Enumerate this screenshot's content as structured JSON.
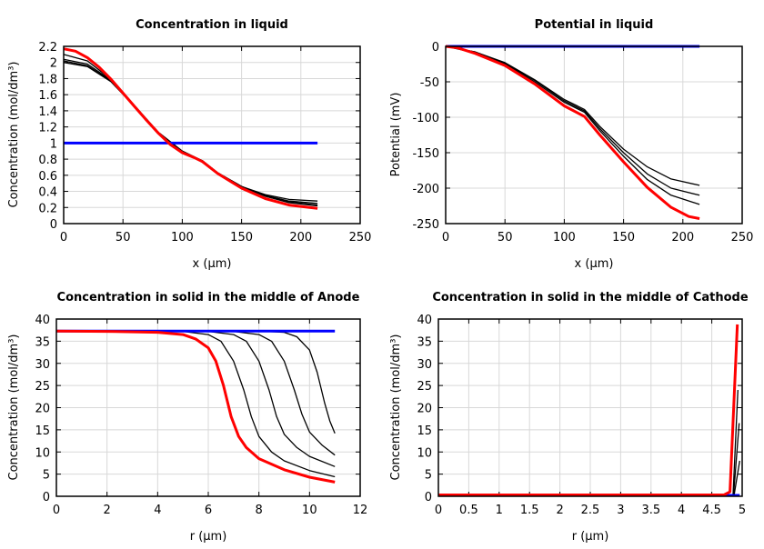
{
  "chart_data": [
    {
      "type": "line",
      "title": "Concentration in liquid",
      "xlabel": "x (µm)",
      "ylabel": "Concentration (mol/dm³)",
      "xlim": [
        0,
        250
      ],
      "ylim": [
        0,
        2.2
      ],
      "xticks": [
        0,
        50,
        100,
        150,
        200,
        250
      ],
      "yticks": [
        0,
        0.2,
        0.4,
        0.6,
        0.8,
        1,
        1.2,
        1.4,
        1.6,
        1.8,
        2,
        2.2
      ],
      "grid": true,
      "series": [
        {
          "color": "#000000",
          "points": [
            [
              0,
              2.0
            ],
            [
              20,
              1.95
            ],
            [
              40,
              1.76
            ],
            [
              60,
              1.45
            ],
            [
              80,
              1.13
            ],
            [
              100,
              0.9
            ],
            [
              117,
              0.78
            ],
            [
              130,
              0.63
            ],
            [
              150,
              0.46
            ],
            [
              170,
              0.34
            ],
            [
              190,
              0.26
            ],
            [
              214,
              0.22
            ]
          ]
        },
        {
          "color": "#000000",
          "points": [
            [
              0,
              2.02
            ],
            [
              20,
              1.96
            ],
            [
              40,
              1.77
            ],
            [
              60,
              1.45
            ],
            [
              80,
              1.13
            ],
            [
              100,
              0.9
            ],
            [
              117,
              0.78
            ],
            [
              130,
              0.63
            ],
            [
              150,
              0.46
            ],
            [
              170,
              0.34
            ],
            [
              190,
              0.27
            ],
            [
              214,
              0.23
            ]
          ]
        },
        {
          "color": "#000000",
          "points": [
            [
              0,
              2.04
            ],
            [
              20,
              1.98
            ],
            [
              40,
              1.78
            ],
            [
              60,
              1.46
            ],
            [
              80,
              1.13
            ],
            [
              100,
              0.89
            ],
            [
              117,
              0.78
            ],
            [
              130,
              0.63
            ],
            [
              150,
              0.46
            ],
            [
              170,
              0.35
            ],
            [
              190,
              0.28
            ],
            [
              214,
              0.25
            ]
          ]
        },
        {
          "color": "#000000",
          "points": [
            [
              0,
              2.1
            ],
            [
              20,
              2.02
            ],
            [
              40,
              1.79
            ],
            [
              60,
              1.46
            ],
            [
              80,
              1.13
            ],
            [
              100,
              0.89
            ],
            [
              117,
              0.78
            ],
            [
              130,
              0.63
            ],
            [
              150,
              0.46
            ],
            [
              170,
              0.36
            ],
            [
              190,
              0.3
            ],
            [
              214,
              0.28
            ]
          ]
        },
        {
          "color": "#0000ff",
          "points": [
            [
              0,
              1
            ],
            [
              214,
              1
            ]
          ]
        },
        {
          "color": "#ff0000",
          "points": [
            [
              0,
              2.17
            ],
            [
              10,
              2.14
            ],
            [
              20,
              2.06
            ],
            [
              30,
              1.94
            ],
            [
              40,
              1.79
            ],
            [
              50,
              1.62
            ],
            [
              60,
              1.45
            ],
            [
              70,
              1.28
            ],
            [
              80,
              1.12
            ],
            [
              90,
              0.98
            ],
            [
              100,
              0.88
            ],
            [
              110,
              0.82
            ],
            [
              117,
              0.77
            ],
            [
              130,
              0.62
            ],
            [
              150,
              0.44
            ],
            [
              170,
              0.31
            ],
            [
              190,
              0.23
            ],
            [
              214,
              0.19
            ]
          ]
        }
      ]
    },
    {
      "type": "line",
      "title": "Potential in liquid",
      "xlabel": "x (µm)",
      "ylabel": "Potential (mV)",
      "xlim": [
        0,
        250
      ],
      "ylim": [
        -250,
        0
      ],
      "xticks": [
        0,
        50,
        100,
        150,
        200,
        250
      ],
      "yticks": [
        -250,
        -200,
        -150,
        -100,
        -50,
        0
      ],
      "grid": true,
      "series": [
        {
          "color": "#000000",
          "points": [
            [
              0,
              0
            ],
            [
              25,
              -8
            ],
            [
              50,
              -23
            ],
            [
              75,
              -47
            ],
            [
              100,
              -75
            ],
            [
              117,
              -89
            ],
            [
              130,
              -113
            ],
            [
              150,
              -145
            ],
            [
              170,
              -170
            ],
            [
              190,
              -187
            ],
            [
              214,
              -196
            ]
          ]
        },
        {
          "color": "#000000",
          "points": [
            [
              0,
              0
            ],
            [
              25,
              -8
            ],
            [
              50,
              -24
            ],
            [
              75,
              -48
            ],
            [
              100,
              -77
            ],
            [
              117,
              -91
            ],
            [
              130,
              -116
            ],
            [
              150,
              -150
            ],
            [
              170,
              -180
            ],
            [
              190,
              -200
            ],
            [
              214,
              -210
            ]
          ]
        },
        {
          "color": "#000000",
          "points": [
            [
              0,
              0
            ],
            [
              25,
              -9
            ],
            [
              50,
              -25
            ],
            [
              75,
              -50
            ],
            [
              100,
              -79
            ],
            [
              117,
              -93
            ],
            [
              130,
              -119
            ],
            [
              150,
              -155
            ],
            [
              170,
              -188
            ],
            [
              190,
              -210
            ],
            [
              214,
              -223
            ]
          ]
        },
        {
          "color": "#0000ff",
          "points": [
            [
              0,
              0
            ],
            [
              214,
              0
            ]
          ]
        },
        {
          "color": "#ff0000",
          "points": [
            [
              0,
              0
            ],
            [
              10,
              -2
            ],
            [
              25,
              -10
            ],
            [
              50,
              -27
            ],
            [
              75,
              -53
            ],
            [
              100,
              -84
            ],
            [
              117,
              -99
            ],
            [
              130,
              -125
            ],
            [
              150,
              -163
            ],
            [
              170,
              -199
            ],
            [
              190,
              -227
            ],
            [
              205,
              -240
            ],
            [
              214,
              -243
            ]
          ]
        }
      ]
    },
    {
      "type": "line",
      "title": "Concentration in solid in the middle of Anode",
      "xlabel": "r (µm)",
      "ylabel": "Concentration (mol/dm³)",
      "xlim": [
        0,
        12
      ],
      "ylim": [
        0,
        40
      ],
      "xticks": [
        0,
        2,
        4,
        6,
        8,
        10,
        12
      ],
      "yticks": [
        0,
        5,
        10,
        15,
        20,
        25,
        30,
        35,
        40
      ],
      "grid": true,
      "series": [
        {
          "color": "#000000",
          "points": [
            [
              0,
              37.3
            ],
            [
              5,
              37.2
            ],
            [
              6,
              36.5
            ],
            [
              6.5,
              35
            ],
            [
              7,
              30.5
            ],
            [
              7.4,
              24
            ],
            [
              7.7,
              18
            ],
            [
              8,
              13.5
            ],
            [
              8.5,
              10
            ],
            [
              9,
              8
            ],
            [
              10,
              5.8
            ],
            [
              11,
              4.4
            ]
          ]
        },
        {
          "color": "#000000",
          "points": [
            [
              0,
              37.3
            ],
            [
              6,
              37.2
            ],
            [
              7,
              36.5
            ],
            [
              7.5,
              35
            ],
            [
              8,
              30.5
            ],
            [
              8.4,
              24
            ],
            [
              8.7,
              18
            ],
            [
              9,
              14
            ],
            [
              9.5,
              11
            ],
            [
              10,
              9
            ],
            [
              11,
              6.7
            ]
          ]
        },
        {
          "color": "#000000",
          "points": [
            [
              0,
              37.3
            ],
            [
              7,
              37.2
            ],
            [
              8,
              36.5
            ],
            [
              8.5,
              35
            ],
            [
              9,
              30.5
            ],
            [
              9.4,
              24
            ],
            [
              9.7,
              18.5
            ],
            [
              10,
              14.5
            ],
            [
              10.5,
              11.5
            ],
            [
              11,
              9.3
            ]
          ]
        },
        {
          "color": "#000000",
          "points": [
            [
              0,
              37.3
            ],
            [
              8,
              37.3
            ],
            [
              9,
              37
            ],
            [
              9.5,
              36
            ],
            [
              10,
              33
            ],
            [
              10.3,
              28
            ],
            [
              10.6,
              21
            ],
            [
              10.8,
              17
            ],
            [
              11,
              14.2
            ]
          ]
        },
        {
          "color": "#0000ff",
          "points": [
            [
              0,
              37.3
            ],
            [
              11,
              37.3
            ]
          ]
        },
        {
          "color": "#ff0000",
          "points": [
            [
              0,
              37.3
            ],
            [
              2,
              37.2
            ],
            [
              4,
              37.0
            ],
            [
              5,
              36.5
            ],
            [
              5.5,
              35.5
            ],
            [
              6,
              33.5
            ],
            [
              6.3,
              30.5
            ],
            [
              6.6,
              25
            ],
            [
              6.9,
              18
            ],
            [
              7.2,
              13.5
            ],
            [
              7.5,
              11
            ],
            [
              8,
              8.5
            ],
            [
              9,
              6
            ],
            [
              10,
              4.3
            ],
            [
              11,
              3.2
            ]
          ]
        }
      ]
    },
    {
      "type": "line",
      "title": "Concentration in solid in the middle of Cathode",
      "xlabel": "r (µm)",
      "ylabel": "Concentration (mol/dm³)",
      "xlim": [
        0,
        5
      ],
      "ylim": [
        0,
        40
      ],
      "xticks": [
        0,
        0.5,
        1,
        1.5,
        2,
        2.5,
        3,
        3.5,
        4,
        4.5,
        5
      ],
      "yticks": [
        0,
        5,
        10,
        15,
        20,
        25,
        30,
        35,
        40
      ],
      "grid": true,
      "series": [
        {
          "color": "#0000ff",
          "points": [
            [
              0,
              0.2
            ],
            [
              4.96,
              0.2
            ]
          ]
        },
        {
          "color": "#000000",
          "points": [
            [
              4.85,
              0.5
            ],
            [
              4.93,
              24
            ]
          ]
        },
        {
          "color": "#000000",
          "points": [
            [
              4.86,
              0.5
            ],
            [
              4.95,
              16.5
            ]
          ]
        },
        {
          "color": "#000000",
          "points": [
            [
              4.87,
              0.5
            ],
            [
              4.96,
              8
            ]
          ]
        },
        {
          "color": "#ff0000",
          "points": [
            [
              0,
              0.3
            ],
            [
              4.7,
              0.3
            ],
            [
              4.8,
              1
            ],
            [
              4.92,
              38.8
            ]
          ]
        }
      ]
    }
  ]
}
